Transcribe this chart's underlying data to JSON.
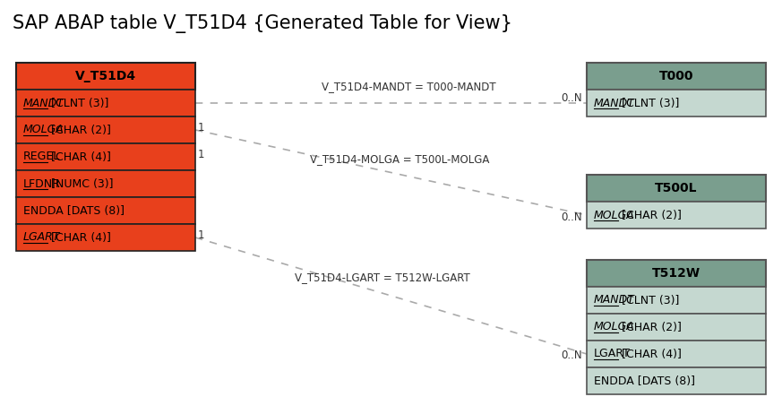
{
  "title": "SAP ABAP table V_T51D4 {Generated Table for View}",
  "bg": "#ffffff",
  "main_table": {
    "name": "V_T51D4",
    "header_bg": "#e8401c",
    "header_fg": "#ffffff",
    "row_bg": "#e8401c",
    "row_fg": "#000000",
    "border": "#222222",
    "fields": [
      {
        "text": "MANDT [CLNT (3)]",
        "key": "MANDT",
        "italic": true,
        "underline": true
      },
      {
        "text": "MOLGA [CHAR (2)]",
        "key": "MOLGA",
        "italic": true,
        "underline": true
      },
      {
        "text": "REGEL [CHAR (4)]",
        "key": "REGEL",
        "italic": false,
        "underline": true
      },
      {
        "text": "LFDNR [NUMC (3)]",
        "key": "LFDNR",
        "italic": false,
        "underline": true
      },
      {
        "text": "ENDDA [DATS (8)]",
        "key": null,
        "italic": false,
        "underline": false
      },
      {
        "text": "LGART [CHAR (4)]",
        "key": "LGART",
        "italic": true,
        "underline": true
      }
    ]
  },
  "t000": {
    "name": "T000",
    "header_bg": "#7a9e8e",
    "row_bg": "#c5d8d0",
    "border": "#555555",
    "fields": [
      {
        "text": "MANDT [CLNT (3)]",
        "key": "MANDT",
        "italic": true,
        "underline": true
      }
    ]
  },
  "t500l": {
    "name": "T500L",
    "header_bg": "#7a9e8e",
    "row_bg": "#c5d8d0",
    "border": "#555555",
    "fields": [
      {
        "text": "MOLGA [CHAR (2)]",
        "key": "MOLGA",
        "italic": true,
        "underline": true
      }
    ]
  },
  "t512w": {
    "name": "T512W",
    "header_bg": "#7a9e8e",
    "row_bg": "#c5d8d0",
    "border": "#555555",
    "fields": [
      {
        "text": "MANDT [CLNT (3)]",
        "key": "MANDT",
        "italic": true,
        "underline": true
      },
      {
        "text": "MOLGA [CHAR (2)]",
        "key": "MOLGA",
        "italic": true,
        "underline": true
      },
      {
        "text": "LGART [CHAR (4)]",
        "key": "LGART",
        "italic": false,
        "underline": true
      },
      {
        "text": "ENDDA [DATS (8)]",
        "key": null,
        "italic": false,
        "underline": false
      }
    ]
  },
  "line_color": "#aaaaaa",
  "label_color": "#333333",
  "rel1_label": "V_T51D4-MANDT = T000-MANDT",
  "rel2_label": "V_T51D4-MOLGA = T500L-MOLGA",
  "rel3_label": "V_T51D4-LGART = T512W-LGART",
  "one_n": "0..N"
}
